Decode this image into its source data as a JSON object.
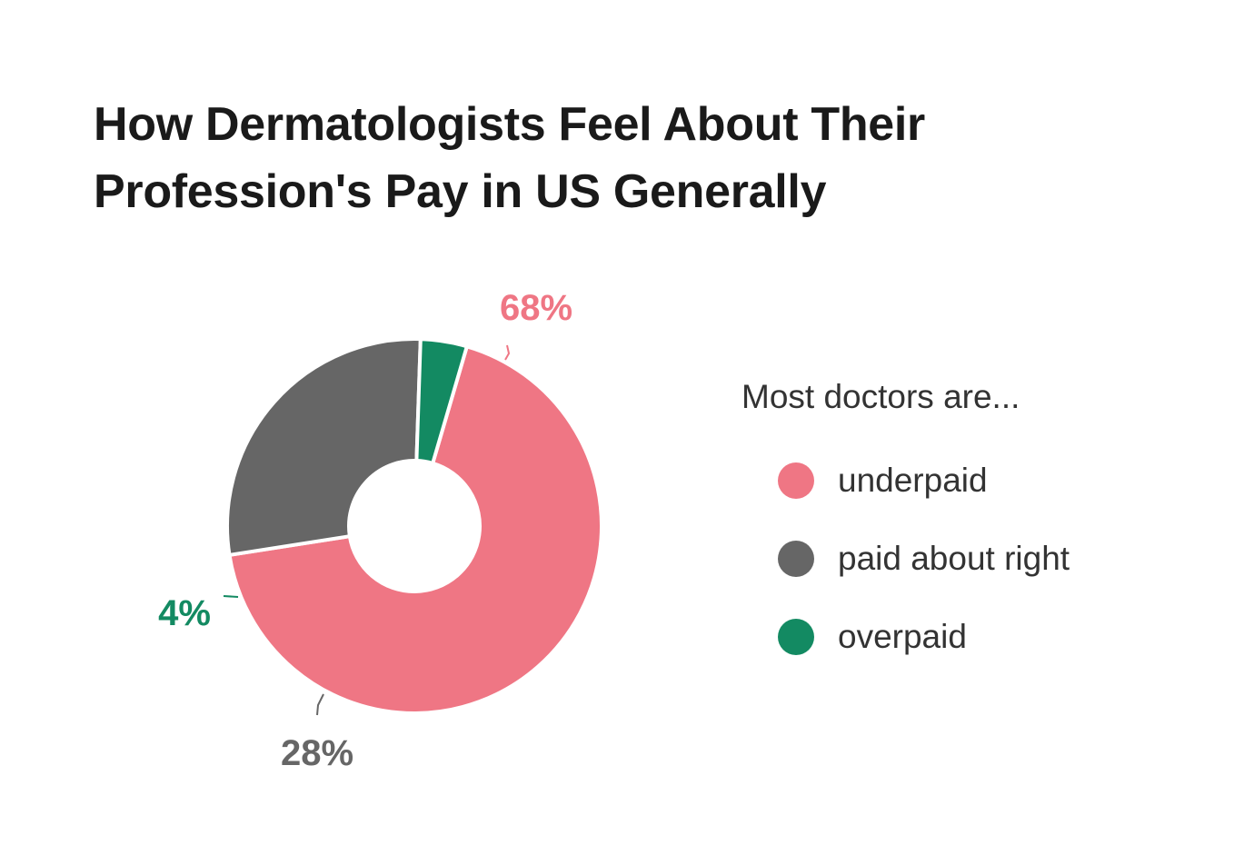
{
  "chart_data": {
    "type": "pie",
    "title": "How Dermatologists Feel About Their Profession's Pay in US Generally",
    "legend_title": "Most doctors are...",
    "legend_position": "right",
    "unit": "%",
    "slices": [
      {
        "name": "underpaid",
        "value": 68,
        "label": "68%",
        "color": "#ef7684"
      },
      {
        "name": "paid about right",
        "value": 28,
        "label": "28%",
        "color": "#666666"
      },
      {
        "name": "overpaid",
        "value": 4,
        "label": "4%",
        "color": "#138a62"
      }
    ]
  }
}
